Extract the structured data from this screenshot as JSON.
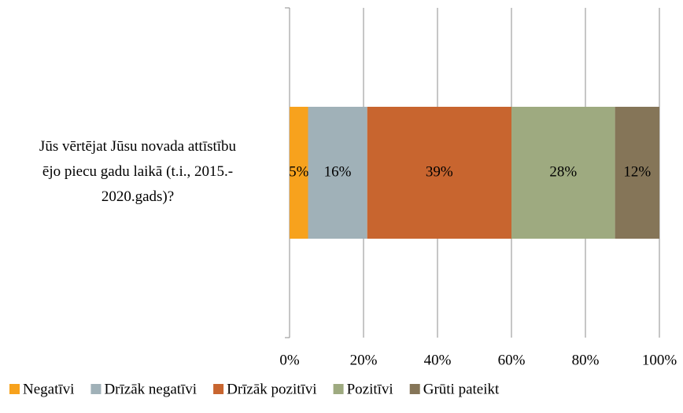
{
  "chart_data": {
    "type": "stacked_barh",
    "categories": [
      "Jūs vērtējat Jūsu novada attīstību\nējo piecu gadu laikā (t.i., 2015.-\n2020.gads)?"
    ],
    "series": [
      {
        "name": "Negatīvi",
        "color": "#f7a21d",
        "values": [
          5
        ],
        "value_labels": [
          "5%"
        ]
      },
      {
        "name": "Drīzāk negatīvi",
        "color": "#a0b1b8",
        "values": [
          16
        ],
        "value_labels": [
          "16%"
        ]
      },
      {
        "name": "Drīzāk pozitīvi",
        "color": "#c8652f",
        "values": [
          39
        ],
        "value_labels": [
          "39%"
        ]
      },
      {
        "name": "Pozitīvi",
        "color": "#9eaa80",
        "values": [
          28
        ],
        "value_labels": [
          "28%"
        ]
      },
      {
        "name": "Grūti pateikt",
        "color": "#857558",
        "values": [
          12
        ],
        "value_labels": [
          "12%"
        ]
      }
    ],
    "xlim": [
      0,
      100
    ],
    "xticks": [
      {
        "value": 0,
        "label": "0%"
      },
      {
        "value": 20,
        "label": "20%"
      },
      {
        "value": 40,
        "label": "40%"
      },
      {
        "value": 60,
        "label": "60%"
      },
      {
        "value": 80,
        "label": "80%"
      },
      {
        "value": 100,
        "label": "100%"
      }
    ],
    "grid": true,
    "legend": "bottom"
  }
}
